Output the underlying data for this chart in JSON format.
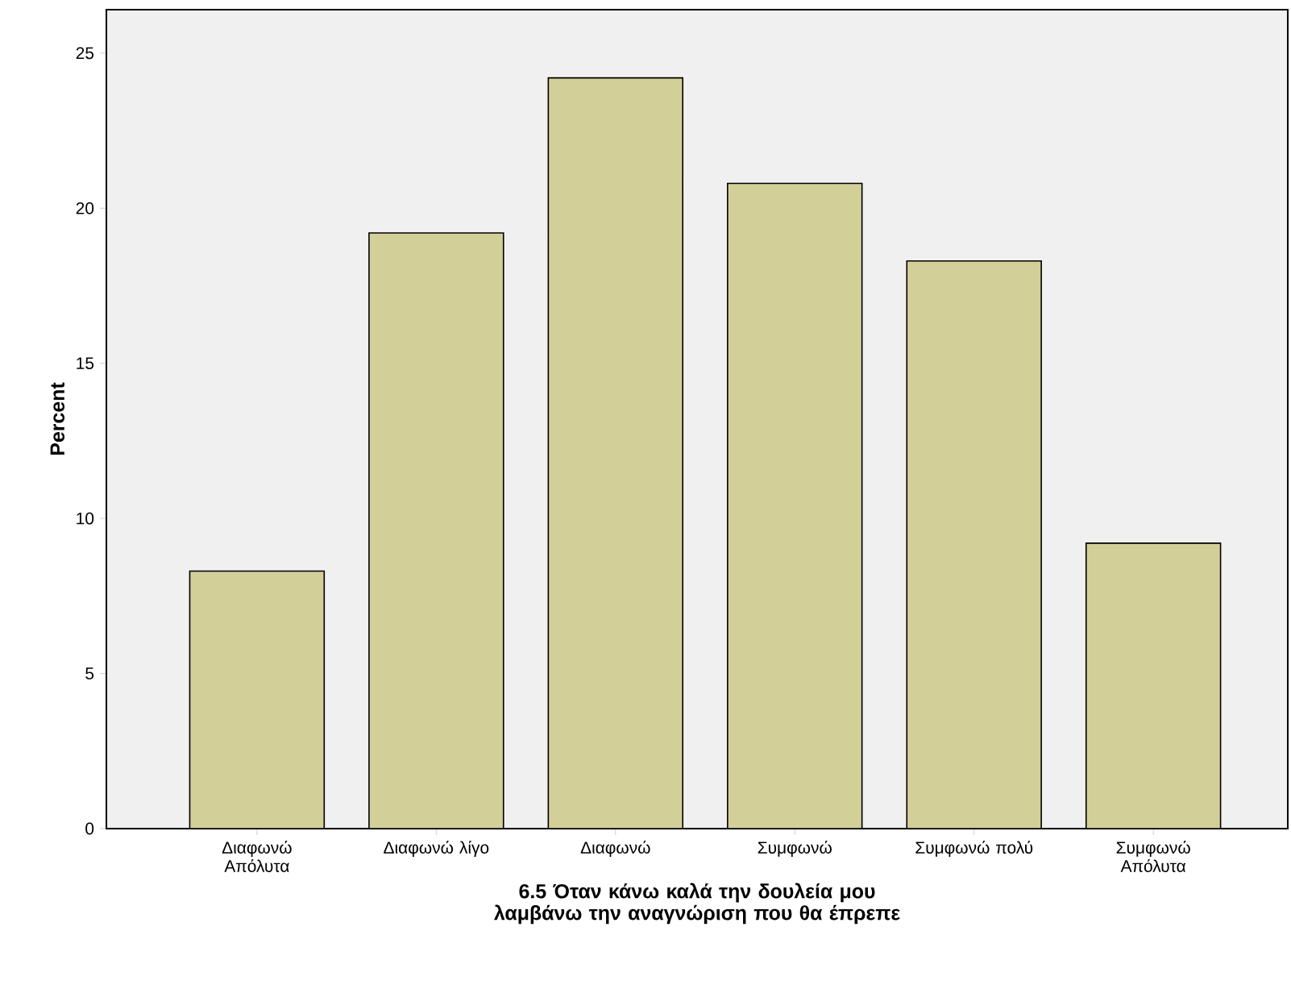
{
  "chart_data": {
    "type": "bar",
    "xlabel": "6.5 Όταν κάνω καλά την δουλεία μου λαμβάνω την αναγνώριση που θα έπρεπε",
    "ylabel": "Percent",
    "categories": [
      "Διαφωνώ Απόλυτα",
      "Διαφωνώ λίγο",
      "Διαφωνώ",
      "Συμφωνώ",
      "Συμφωνώ πολύ",
      "Συμφωνώ Απόλυτα"
    ],
    "values": [
      8.3,
      19.2,
      24.2,
      20.8,
      18.3,
      9.2
    ],
    "color": "#d3cf99",
    "ylim": [
      0,
      26.4
    ],
    "yticks": [
      0,
      5,
      10,
      15,
      20,
      25
    ],
    "grid": false
  }
}
